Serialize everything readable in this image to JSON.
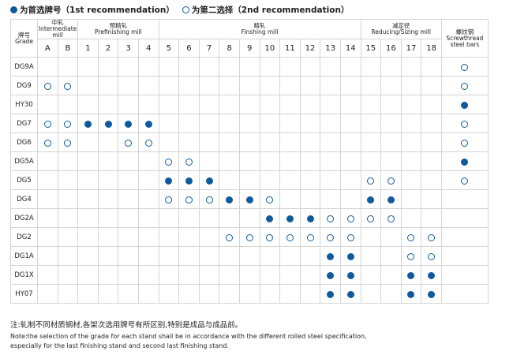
{
  "legend": {
    "first": "为首选牌号（1st recommendation）",
    "second": "为第二选择（2nd recommendation）"
  },
  "header": {
    "grade": "牌号\nGrade",
    "groups": {
      "intermediate": "中轧\nIntermediate mill",
      "prefinishing": "预精轧\nPrefinishing mill",
      "finishing": "精轧\nFinshing mill",
      "reducing": "减定径\nReducing/Sizing mill",
      "screwthread": "螺纹钢\nScrewthread steel bars"
    },
    "stands": [
      "A",
      "B",
      "1",
      "2",
      "3",
      "4",
      "5",
      "6",
      "7",
      "8",
      "9",
      "10",
      "11",
      "12",
      "13",
      "14",
      "15",
      "16",
      "17",
      "18"
    ]
  },
  "rows": [
    {
      "grade": "DG9A",
      "marks": [
        "",
        "",
        "",
        "",
        "",
        "",
        "",
        "",
        "",
        "",
        "",
        "",
        "",
        "",
        "",
        "",
        "",
        "",
        "",
        "",
        "H"
      ]
    },
    {
      "grade": "DG9",
      "marks": [
        "H",
        "H",
        "",
        "",
        "",
        "",
        "",
        "",
        "",
        "",
        "",
        "",
        "",
        "",
        "",
        "",
        "",
        "",
        "",
        "",
        "H"
      ]
    },
    {
      "grade": "HY30",
      "marks": [
        "",
        "",
        "",
        "",
        "",
        "",
        "",
        "",
        "",
        "",
        "",
        "",
        "",
        "",
        "",
        "",
        "",
        "",
        "",
        "",
        "F"
      ]
    },
    {
      "grade": "DG7",
      "marks": [
        "H",
        "H",
        "F",
        "F",
        "F",
        "F",
        "",
        "",
        "",
        "",
        "",
        "",
        "",
        "",
        "",
        "",
        "",
        "",
        "",
        "",
        "H"
      ]
    },
    {
      "grade": "DG6",
      "marks": [
        "H",
        "H",
        "",
        "",
        "H",
        "H",
        "",
        "",
        "",
        "",
        "",
        "",
        "",
        "",
        "",
        "",
        "",
        "",
        "",
        "",
        "H"
      ]
    },
    {
      "grade": "DG5A",
      "marks": [
        "",
        "",
        "",
        "",
        "",
        "",
        "H",
        "H",
        "",
        "",
        "",
        "",
        "",
        "",
        "",
        "",
        "",
        "",
        "",
        "",
        "F"
      ]
    },
    {
      "grade": "DG5",
      "marks": [
        "",
        "",
        "",
        "",
        "",
        "",
        "F",
        "F",
        "F",
        "",
        "",
        "",
        "",
        "",
        "",
        "",
        "H",
        "H",
        "",
        "",
        "H"
      ]
    },
    {
      "grade": "DG4",
      "marks": [
        "",
        "",
        "",
        "",
        "",
        "",
        "H",
        "H",
        "H",
        "F",
        "F",
        "H",
        "",
        "",
        "",
        "",
        "F",
        "F",
        "",
        "",
        ""
      ]
    },
    {
      "grade": "DG2A",
      "marks": [
        "",
        "",
        "",
        "",
        "",
        "",
        "",
        "",
        "",
        "",
        "",
        "F",
        "F",
        "F",
        "H",
        "H",
        "H",
        "H",
        "",
        "",
        ""
      ]
    },
    {
      "grade": "DG2",
      "marks": [
        "",
        "",
        "",
        "",
        "",
        "",
        "",
        "",
        "",
        "H",
        "H",
        "H",
        "H",
        "H",
        "H",
        "H",
        "",
        "",
        "H",
        "H",
        ""
      ]
    },
    {
      "grade": "DG1A",
      "marks": [
        "",
        "",
        "",
        "",
        "",
        "",
        "",
        "",
        "",
        "",
        "",
        "",
        "",
        "",
        "F",
        "F",
        "",
        "",
        "H",
        "H",
        ""
      ]
    },
    {
      "grade": "DG1X",
      "marks": [
        "",
        "",
        "",
        "",
        "",
        "",
        "",
        "",
        "",
        "",
        "",
        "",
        "",
        "",
        "F",
        "F",
        "",
        "",
        "F",
        "F",
        ""
      ]
    },
    {
      "grade": "HY07",
      "marks": [
        "",
        "",
        "",
        "",
        "",
        "",
        "",
        "",
        "",
        "",
        "",
        "",
        "",
        "",
        "F",
        "F",
        "",
        "",
        "F",
        "F",
        ""
      ]
    }
  ],
  "notes": {
    "cn": "注:轧制不同材质钢材,各架次选用牌号有所区别,特别是成品与成品前。",
    "en1": "Note:the selection of the grade for each stand shall be in accordance with the different rolled steel specification,",
    "en2": "especially for the last finishing stand and second last finishing stand."
  },
  "colors": {
    "mark": "#0e5a9c",
    "grid": "#d4d4d4"
  }
}
